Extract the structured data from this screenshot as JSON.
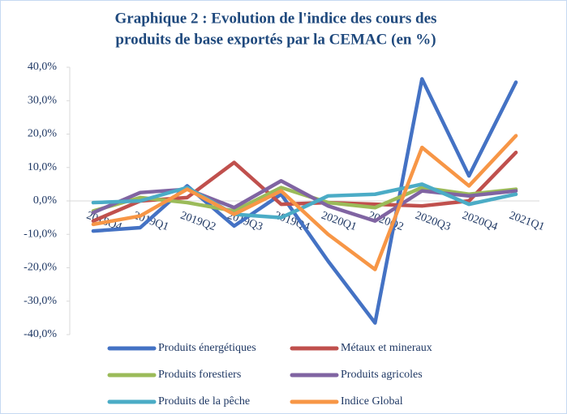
{
  "chart_data": {
    "type": "line",
    "title": [
      "Graphique 2 : Evolution de l'indice des cours des",
      "produits de base exportés par la CEMAC (en %)"
    ],
    "categories": [
      "2018Q4",
      "2019Q1",
      "2019Q2",
      "2019Q3",
      "2019Q4",
      "2020Q1",
      "2020Q2",
      "2020Q3",
      "2020Q4",
      "2021Q1"
    ],
    "ylim": [
      -40,
      40
    ],
    "yticks": [
      {
        "value": -40,
        "label": "-40,0%"
      },
      {
        "value": -30,
        "label": "-30,0%"
      },
      {
        "value": -20,
        "label": "-20,0%"
      },
      {
        "value": -10,
        "label": "-10,0%"
      },
      {
        "value": 0,
        "label": "0,0%"
      },
      {
        "value": 10,
        "label": "10,0%"
      },
      {
        "value": 20,
        "label": "20,0%"
      },
      {
        "value": 30,
        "label": "30,0%"
      },
      {
        "value": 40,
        "label": "40,0%"
      }
    ],
    "series": [
      {
        "name": "Produits énergétiques",
        "color": "#4472c4",
        "values": [
          -9,
          -8,
          4.5,
          -7.5,
          2,
          -18,
          -36.5,
          36.5,
          7.5,
          35.5
        ]
      },
      {
        "name": "Métaux et mineraux",
        "color": "#c0504d",
        "values": [
          -6,
          0,
          1,
          11.5,
          -1,
          -0.5,
          -1,
          -1.5,
          0,
          14.5
        ]
      },
      {
        "name": "Produits forestiers",
        "color": "#9bbb59",
        "values": [
          -3,
          1,
          -0.5,
          -3,
          4,
          -0.5,
          -2,
          4,
          2,
          3.5
        ]
      },
      {
        "name": "Produits agricoles",
        "color": "#8064a2",
        "values": [
          -3.5,
          2.5,
          3.5,
          -2,
          6,
          -1.5,
          -6,
          3,
          1.5,
          3
        ]
      },
      {
        "name": "Produits de la pêche",
        "color": "#4bacc6",
        "values": [
          -0.5,
          0,
          4,
          -4,
          -5,
          1.5,
          2,
          5,
          -1,
          2
        ]
      },
      {
        "name": "Indice Global",
        "color": "#f79646",
        "values": [
          -7,
          -4.5,
          3.5,
          -4,
          3,
          -10,
          -20.5,
          16,
          4.5,
          19.5
        ]
      }
    ]
  }
}
